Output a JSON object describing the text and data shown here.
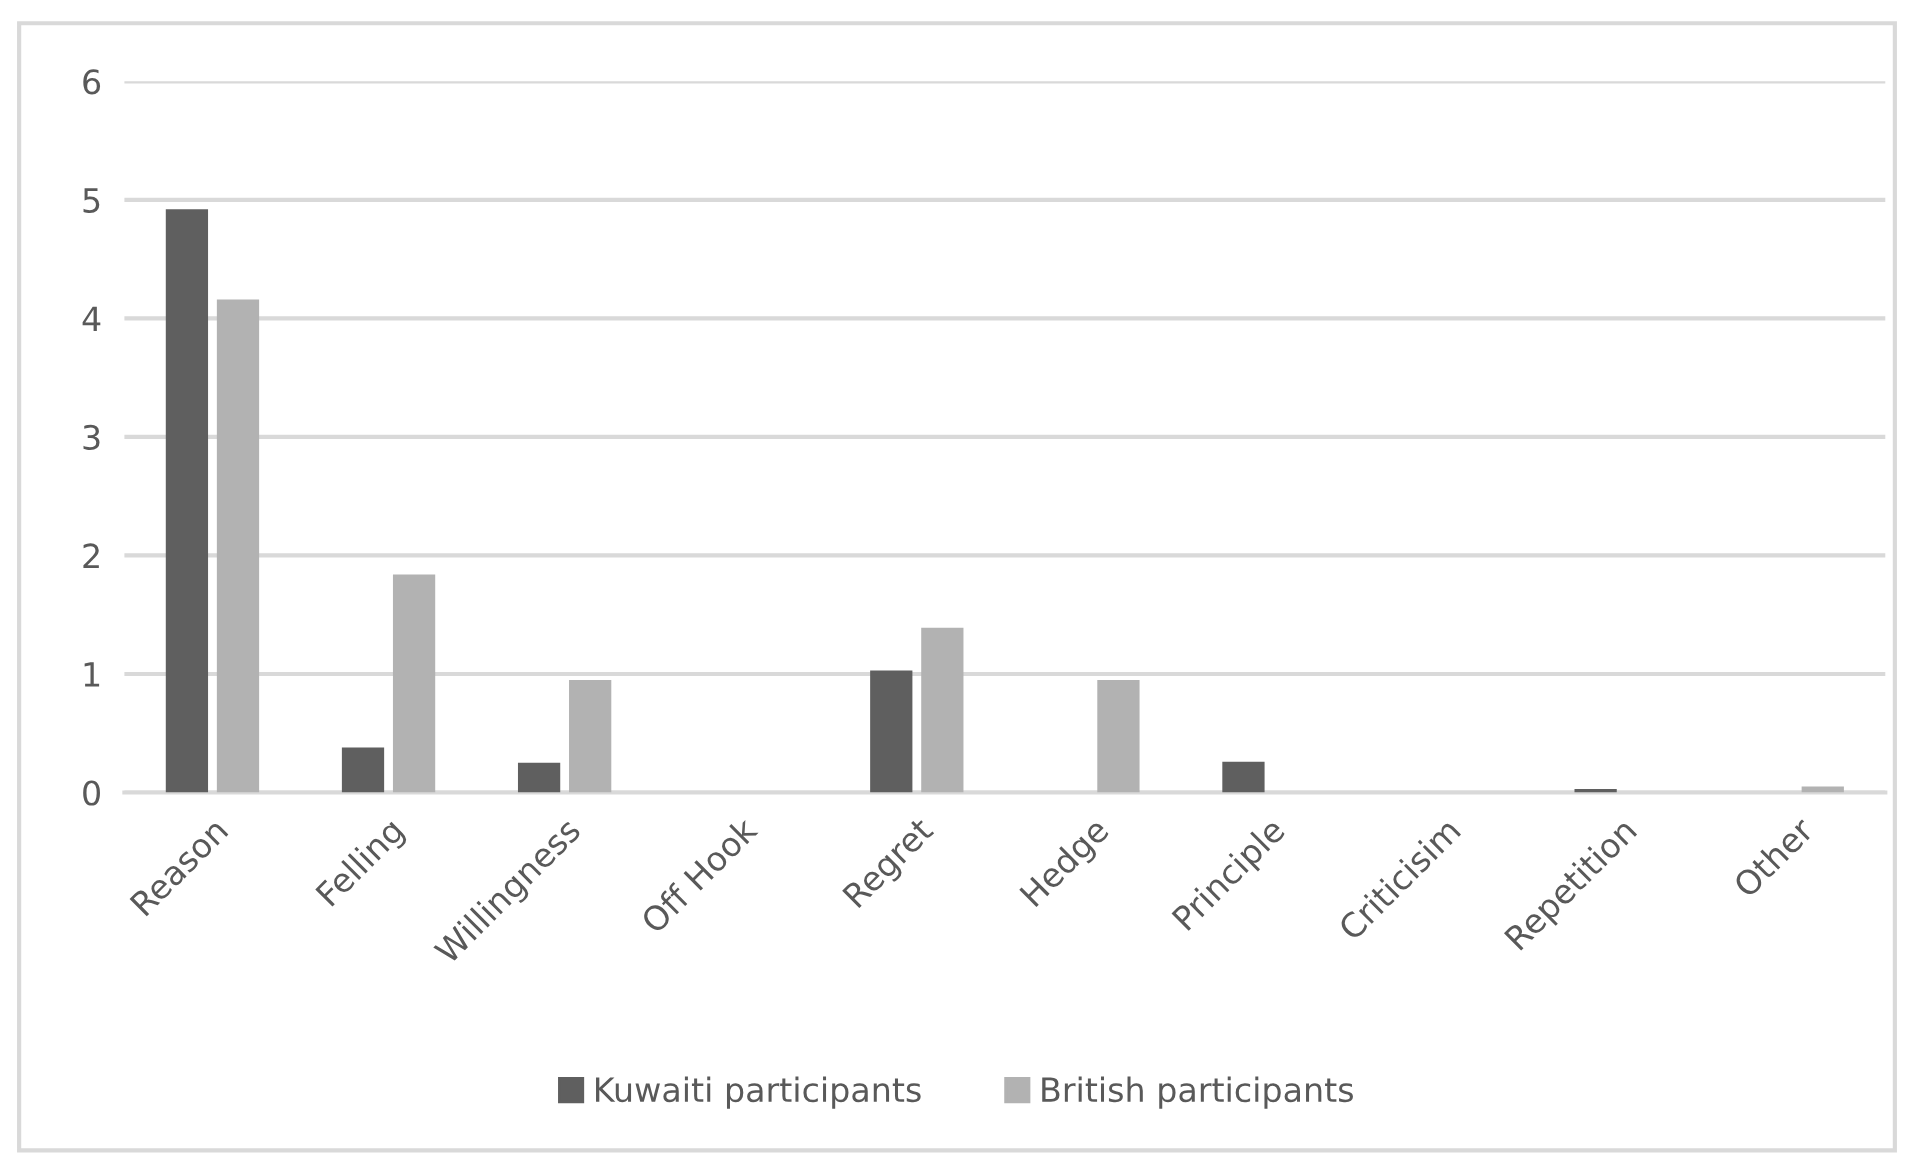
{
  "chart_data": {
    "type": "bar",
    "categories": [
      "Reason",
      "Felling",
      "Willingness",
      "Off Hook",
      "Regret",
      "Hedge",
      "Principle",
      "Criticisim",
      "Repetition",
      "Other"
    ],
    "series": [
      {
        "name": "Kuwaiti participants",
        "color": "#5f5f5f",
        "values": [
          4.92,
          0.38,
          0.25,
          0,
          1.03,
          0,
          0.26,
          0,
          0.03,
          0
        ]
      },
      {
        "name": "British participants",
        "color": "#b2b2b2",
        "values": [
          4.16,
          1.84,
          0.95,
          0,
          1.39,
          0.95,
          0,
          0,
          0,
          0.05
        ]
      }
    ],
    "ylim": [
      0,
      6
    ],
    "yticks": [
      0,
      1,
      2,
      3,
      4,
      5,
      6
    ],
    "grid": "y",
    "legend": "bottom"
  }
}
